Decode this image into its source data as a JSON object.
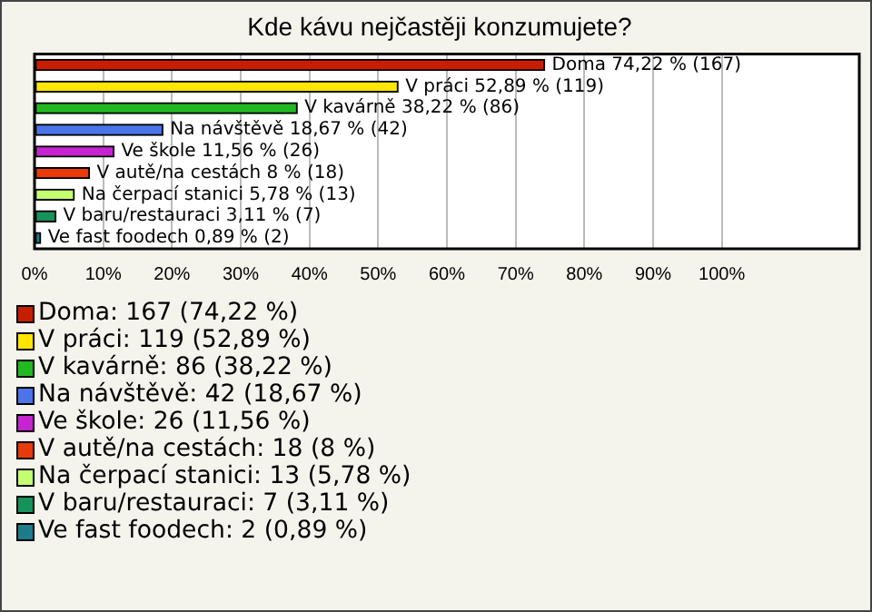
{
  "chart_data": {
    "type": "bar",
    "orientation": "horizontal",
    "title": "Kde kávu nejčastěji konzumujete?",
    "categories": [
      null,
      null,
      null,
      null,
      null,
      null,
      null,
      null,
      null
    ],
    "values": [
      74.22,
      52.89,
      38.22,
      18.67,
      11.56,
      8,
      5.78,
      3.11,
      0.89
    ],
    "colors": [
      "#c81e00",
      "#ffe600",
      "#22b822",
      "#4a74e8",
      "#c524d0",
      "#e83a0a",
      "#c4ff70",
      "#16925a",
      "#1f7a8c"
    ],
    "value_labels": [
      "Doma 74,22 % (167)",
      "V práci 52,89 % (119)",
      "V kavárně 38,22 % (86)",
      "Na návštěvě 18,67 % (42)",
      "Ve škole 11,56 % (26)",
      "V autě/na cestách 8 % (18)",
      "Na čerpací stanici 5,78 % (13)",
      "V baru/restauraci 3,11 % (7)",
      "Ve fast foodech 0,89 % (2)"
    ],
    "xlim": [
      0,
      120
    ],
    "xticks": [
      {
        "value": 0,
        "label": "0%"
      },
      {
        "value": 10,
        "label": "10%"
      },
      {
        "value": 20,
        "label": "20%"
      },
      {
        "value": 30,
        "label": "30%"
      },
      {
        "value": 40,
        "label": "40%"
      },
      {
        "value": 50,
        "label": "50%"
      },
      {
        "value": 60,
        "label": "60%"
      },
      {
        "value": 70,
        "label": "70%"
      },
      {
        "value": 80,
        "label": "80%"
      },
      {
        "value": 90,
        "label": "90%"
      },
      {
        "value": 100,
        "label": "100%"
      }
    ],
    "grid": "x",
    "annotations": [
      "Doma: 167 (74,22 %)",
      "V práci: 119 (52,89 %)",
      "V kavárně: 86 (38,22 %)",
      "Na návštěvě: 42 (18,67 %)",
      "Ve škole: 26 (11,56 %)",
      "V autě/na cestách: 18 (8 %)",
      "Na čerpací stanici: 13 (5,78 %)",
      "V baru/restauraci: 7 (3,11 %)",
      "Ve fast foodech: 2 (0,89 %)"
    ]
  }
}
